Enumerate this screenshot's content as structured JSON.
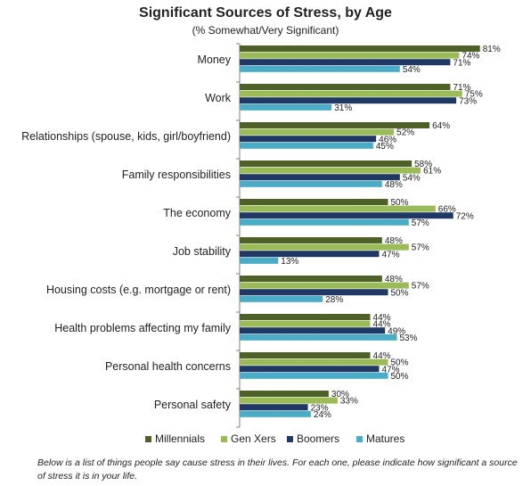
{
  "chart_data": {
    "type": "bar",
    "orientation": "horizontal",
    "title": "Significant Sources of Stress, by Age",
    "subtitle": "(% Somewhat/Very Significant)",
    "categories": [
      "Money",
      "Work",
      "Relationships (spouse, kids, girl/boyfriend)",
      "Family responsibilities",
      "The economy",
      "Job stability",
      "Housing costs (e.g. mortgage  or rent)",
      "Health problems affecting my family",
      "Personal health concerns",
      "Personal safety"
    ],
    "series": [
      {
        "name": "Millennials",
        "color": "#4e6128",
        "values": [
          81,
          71,
          64,
          58,
          50,
          48,
          48,
          44,
          44,
          30
        ]
      },
      {
        "name": "Gen Xers",
        "color": "#9bbb59",
        "values": [
          74,
          75,
          52,
          61,
          66,
          57,
          57,
          44,
          50,
          33
        ]
      },
      {
        "name": "Boomers",
        "color": "#1f3864",
        "values": [
          71,
          73,
          46,
          54,
          72,
          47,
          50,
          49,
          47,
          23
        ]
      },
      {
        "name": "Matures",
        "color": "#4bacc6",
        "values": [
          54,
          31,
          45,
          48,
          57,
          13,
          28,
          53,
          50,
          24
        ]
      }
    ],
    "value_suffix": "%",
    "xlim": [
      0,
      100
    ],
    "legend_position": "bottom",
    "grid": false
  },
  "footnote": "Below is a list of things people say cause stress in their lives. For each one, please indicate how significant a source of stress it is in your life."
}
